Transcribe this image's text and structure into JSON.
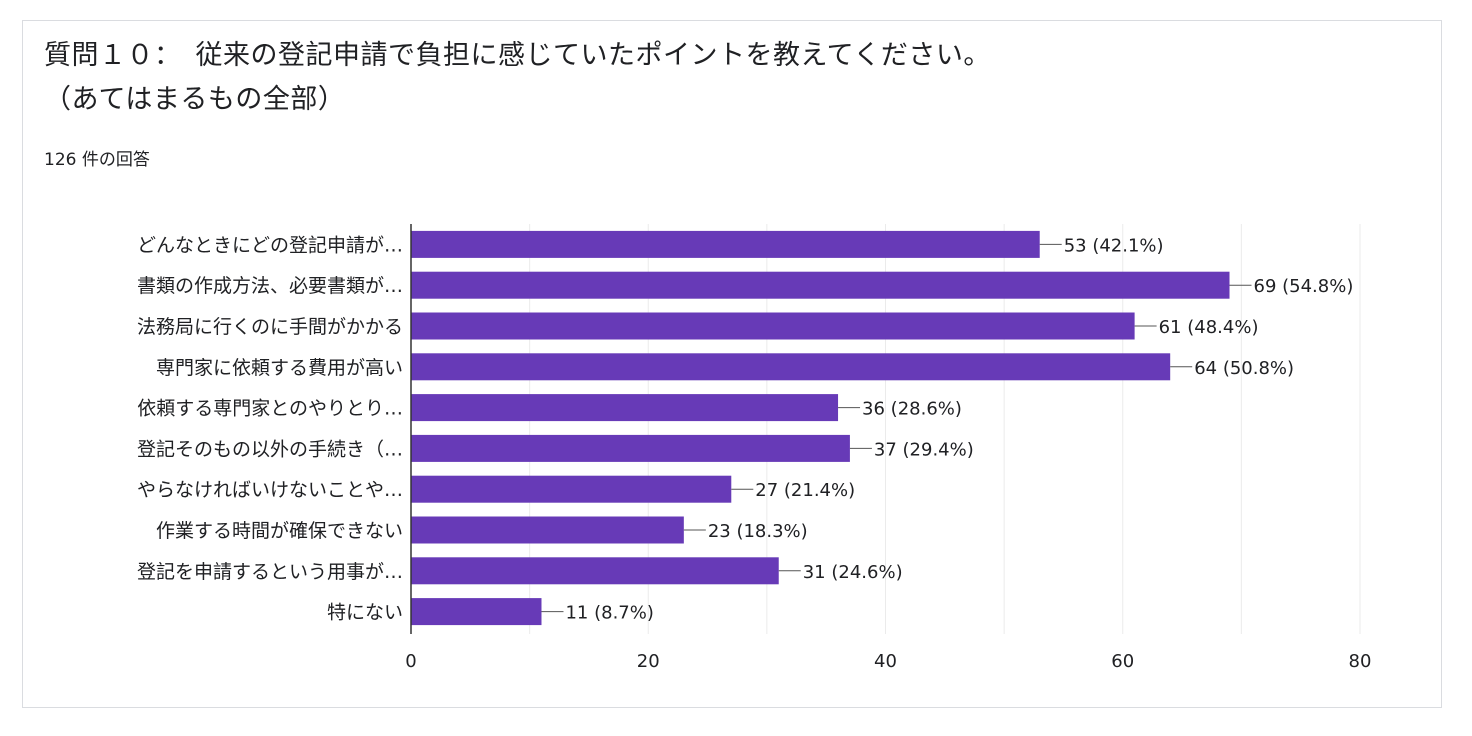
{
  "title": {
    "line1": "質問１０：　従来の登記申請で負担に感じていたポイントを教えてください。",
    "line2": "（あてはまるもの全部）"
  },
  "response_count": "126 件の回答",
  "colors": {
    "bar": "#673ab7",
    "grid": "#ebebeb",
    "axis": "#333333",
    "text": "#202124"
  },
  "chart_data": {
    "type": "bar",
    "orientation": "horizontal",
    "categories": [
      "どんなときにどの登記申請が…",
      "書類の作成方法、必要書類が…",
      "法務局に行くのに手間がかかる",
      "専門家に依頼する費用が高い",
      "依頼する専門家とのやりとり…",
      "登記そのもの以外の手続き（…",
      "やらなければいけないことや…",
      "作業する時間が確保できない",
      "登記を申請するという用事が…",
      "特にない"
    ],
    "values": [
      53,
      69,
      61,
      64,
      36,
      37,
      27,
      23,
      31,
      11
    ],
    "data_labels": [
      "53 (42.1%)",
      "69 (54.8%)",
      "61 (48.4%)",
      "64 (50.8%)",
      "36 (28.6%)",
      "37 (29.4%)",
      "27 (21.4%)",
      "23 (18.3%)",
      "31 (24.6%)",
      "11 (8.7%)"
    ],
    "xlim": [
      0,
      80
    ],
    "xticks": [
      0,
      20,
      40,
      60,
      80
    ],
    "grid": true,
    "legend": "none"
  }
}
